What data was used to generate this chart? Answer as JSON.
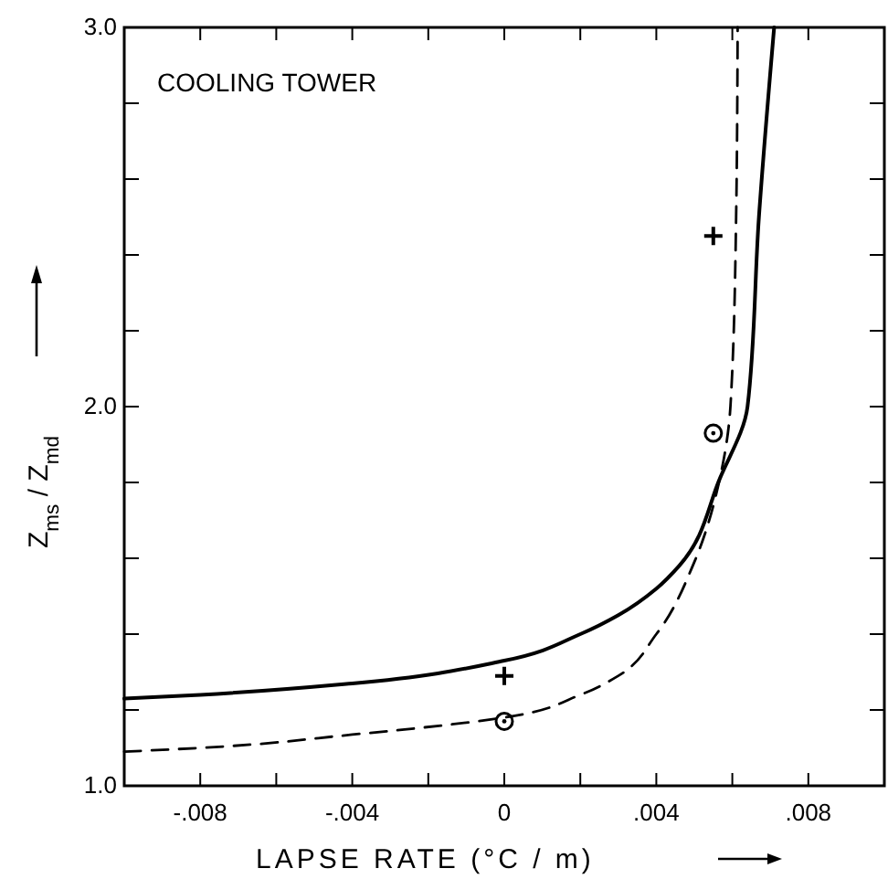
{
  "chart_data": {
    "type": "line",
    "title": "COOLING TOWER",
    "xlabel": "LAPSE RATE (°C / m)",
    "ylabel": "Z$_{ms}$ / Z$_{md}$",
    "xlim": [
      -0.01,
      0.01
    ],
    "ylim": [
      1.0,
      3.0
    ],
    "xticks": [
      {
        "value": -0.008,
        "label": "-.008"
      },
      {
        "value": -0.006,
        "label": null
      },
      {
        "value": -0.004,
        "label": "-.004"
      },
      {
        "value": -0.002,
        "label": null
      },
      0,
      {
        "value": 0.002,
        "label": null
      },
      {
        "value": 0.004,
        "label": ".004"
      },
      {
        "value": 0.006,
        "label": null
      },
      {
        "value": 0.008,
        "label": ".008"
      }
    ],
    "yticks": [
      {
        "value": 1.0,
        "label": "1.0"
      },
      {
        "value": 1.2,
        "label": null
      },
      {
        "value": 1.4,
        "label": null
      },
      {
        "value": 1.6,
        "label": null
      },
      {
        "value": 1.8,
        "label": null
      },
      {
        "value": 2.0,
        "label": "2.0"
      },
      {
        "value": 2.2,
        "label": null
      },
      {
        "value": 2.4,
        "label": null
      },
      {
        "value": 2.6,
        "label": null
      },
      {
        "value": 2.8,
        "label": null
      },
      {
        "value": 3.0,
        "label": "3.0"
      }
    ],
    "grid": false,
    "series": [
      {
        "type": "line",
        "line_style": "solid",
        "color": "#000000",
        "x": [
          -0.01,
          -0.008,
          -0.004,
          0,
          0.002,
          0.003,
          0.004,
          0.0046,
          0.00567,
          0.0064,
          0.0067,
          0.0071
        ],
        "values": [
          1.23,
          1.24,
          1.27,
          1.33,
          1.4,
          1.45,
          1.52,
          1.58,
          1.81,
          2.0,
          2.5,
          3.0
        ]
      },
      {
        "type": "line",
        "line_style": "dashed",
        "color": "#000000",
        "x": [
          -0.01,
          -0.008,
          -0.004,
          0,
          0.002,
          0.003,
          0.004,
          0.005,
          0.00567,
          0.00595,
          0.0061,
          0.00614
        ],
        "values": [
          1.09,
          1.1,
          1.135,
          1.18,
          1.24,
          1.29,
          1.4,
          1.59,
          1.81,
          2.0,
          2.5,
          3.0
        ]
      },
      {
        "type": "scatter",
        "marker": "cross",
        "color": "#000000",
        "x": [
          0,
          0.0055
        ],
        "values": [
          1.29,
          2.45
        ]
      },
      {
        "type": "scatter",
        "marker": "circle",
        "color": "#000000",
        "x": [
          0,
          0.0055
        ],
        "values": [
          1.17,
          1.93
        ]
      }
    ]
  }
}
